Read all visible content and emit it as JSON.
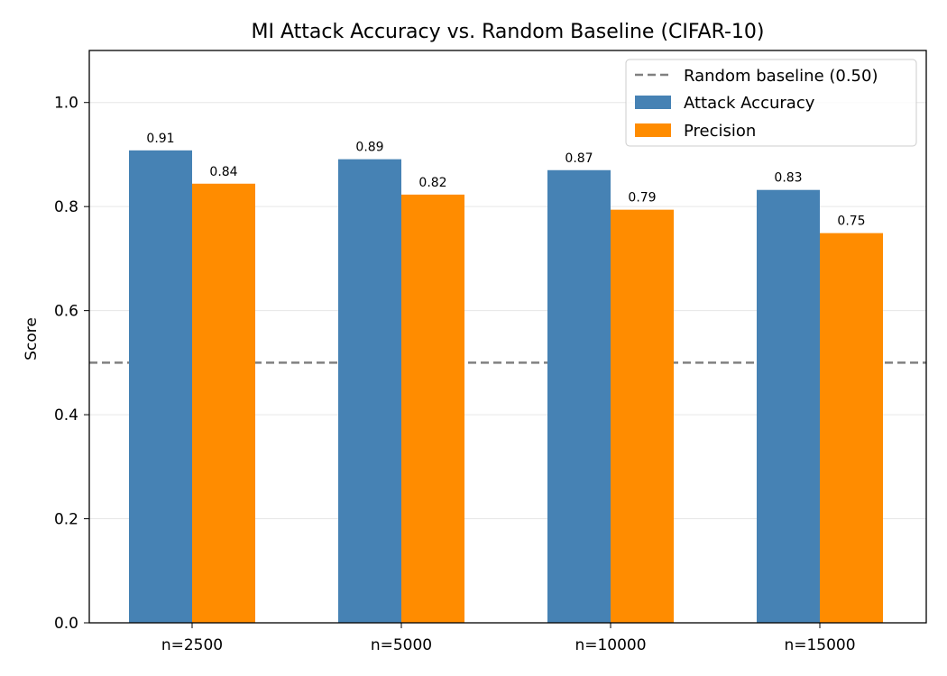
{
  "chart_data": {
    "type": "bar",
    "title": "MI Attack Accuracy vs. Random Baseline (CIFAR-10)",
    "xlabel": "",
    "ylabel": "Score",
    "categories": [
      "n=2500",
      "n=5000",
      "n=10000",
      "n=15000"
    ],
    "series": [
      {
        "name": "Attack Accuracy",
        "color": "#4682B4",
        "values": [
          0.908,
          0.891,
          0.87,
          0.832
        ],
        "labels": [
          "0.91",
          "0.89",
          "0.87",
          "0.83"
        ]
      },
      {
        "name": "Precision",
        "color": "#FF8C00",
        "values": [
          0.844,
          0.823,
          0.794,
          0.749
        ],
        "labels": [
          "0.84",
          "0.82",
          "0.79",
          "0.75"
        ]
      }
    ],
    "baseline": {
      "name": "Random baseline (0.50)",
      "value": 0.5,
      "color": "#808080",
      "style": "dashed"
    },
    "ylim": [
      0,
      1.1
    ],
    "yticks": [
      "0.0",
      "0.2",
      "0.4",
      "0.6",
      "0.8",
      "1.0"
    ],
    "grid": "y",
    "legend": "top-right"
  }
}
